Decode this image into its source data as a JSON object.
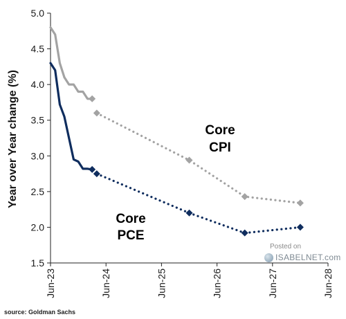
{
  "chart_data": {
    "type": "line",
    "ylabel": "Year over Year change (%)",
    "xlabel": "",
    "ylim": [
      1.5,
      5.0
    ],
    "yticks": [
      "1.5",
      "2.0",
      "2.5",
      "3.0",
      "3.5",
      "4.0",
      "4.5",
      "5.0"
    ],
    "xlim": [
      "2023-06",
      "2028-06"
    ],
    "xticks": [
      {
        "label": "Jun-23",
        "date": "2023-06"
      },
      {
        "label": "Jun-24",
        "date": "2024-06"
      },
      {
        "label": "Jun-25",
        "date": "2025-06"
      },
      {
        "label": "Jun-26",
        "date": "2026-06"
      },
      {
        "label": "Jun-27",
        "date": "2027-06"
      },
      {
        "label": "Jun-28",
        "date": "2028-06"
      }
    ],
    "grid": false,
    "series": [
      {
        "name_line1": "Core",
        "name_line2": "CPI",
        "color": "#a3a3a3",
        "history": [
          {
            "date": "2023-06",
            "y": 4.8
          },
          {
            "date": "2023-07",
            "y": 4.7
          },
          {
            "date": "2023-08",
            "y": 4.3
          },
          {
            "date": "2023-09",
            "y": 4.1
          },
          {
            "date": "2023-10",
            "y": 4.0
          },
          {
            "date": "2023-11",
            "y": 4.0
          },
          {
            "date": "2023-12",
            "y": 3.9
          },
          {
            "date": "2024-01",
            "y": 3.9
          },
          {
            "date": "2024-02",
            "y": 3.8
          },
          {
            "date": "2024-03",
            "y": 3.8
          }
        ],
        "forecast": [
          {
            "date": "2024-03",
            "y": 3.8
          },
          {
            "date": "2024-04",
            "y": 3.6
          },
          {
            "date": "2025-12",
            "y": 2.94
          },
          {
            "date": "2026-12",
            "y": 2.43
          },
          {
            "date": "2027-12",
            "y": 2.34
          }
        ]
      },
      {
        "name_line1": "Core",
        "name_line2": "PCE",
        "color": "#0f2d5e",
        "history": [
          {
            "date": "2023-06",
            "y": 4.3
          },
          {
            "date": "2023-07",
            "y": 4.2
          },
          {
            "date": "2023-08",
            "y": 3.72
          },
          {
            "date": "2023-09",
            "y": 3.55
          },
          {
            "date": "2023-10",
            "y": 3.25
          },
          {
            "date": "2023-11",
            "y": 2.95
          },
          {
            "date": "2023-12",
            "y": 2.92
          },
          {
            "date": "2024-01",
            "y": 2.82
          },
          {
            "date": "2024-02",
            "y": 2.82
          },
          {
            "date": "2024-03",
            "y": 2.81
          }
        ],
        "forecast": [
          {
            "date": "2024-03",
            "y": 2.81
          },
          {
            "date": "2024-04",
            "y": 2.75
          },
          {
            "date": "2025-12",
            "y": 2.2
          },
          {
            "date": "2026-12",
            "y": 1.92
          },
          {
            "date": "2027-12",
            "y": 2.0
          }
        ]
      }
    ]
  },
  "source_note": "source: Goldman Sachs",
  "watermark": {
    "posted": "Posted on",
    "site": "ISABELNET.com"
  }
}
